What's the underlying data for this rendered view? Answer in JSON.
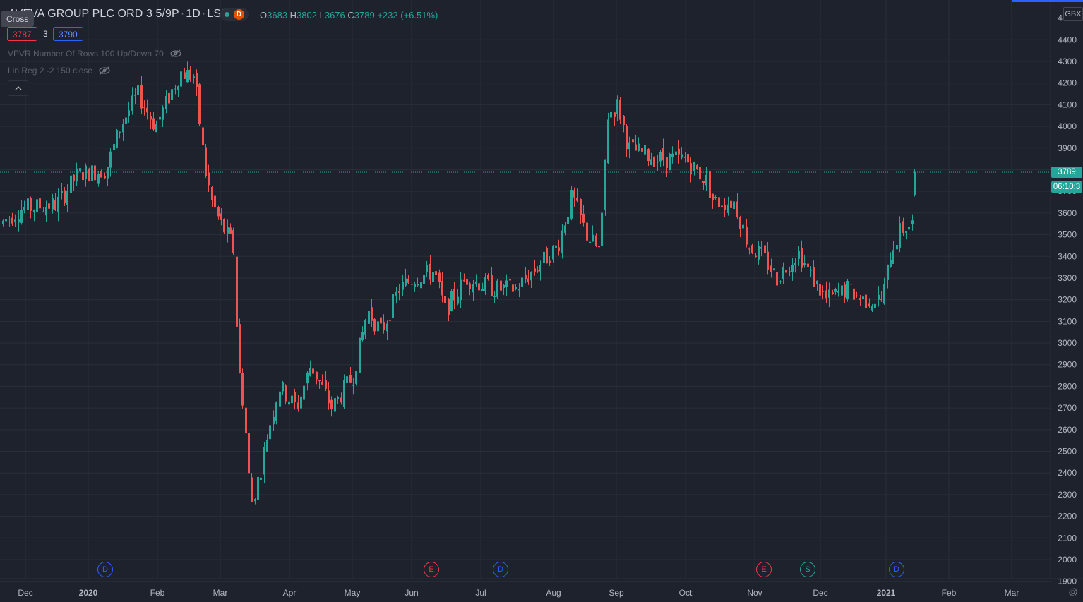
{
  "legend": {
    "symbol": "AVEVA GROUP PLC ORD 3 5/9P",
    "interval": "1D",
    "exchange": "LSE",
    "status_badge": "D",
    "open_label": "O",
    "open": "3683",
    "high_label": "H",
    "high": "3802",
    "low_label": "L",
    "low": "3676",
    "close_label": "C",
    "close": "3789",
    "change": "+232 (+6.51%)"
  },
  "crosshair_tooltip": "Cross",
  "bid": "3787",
  "spread": "3",
  "ask": "3790",
  "indicators": [
    {
      "label": "VPVR Number Of Rows 100 Up/Down 70"
    },
    {
      "label": "Lin Reg 2 -2 150 close"
    }
  ],
  "price_axis": {
    "currency": "GBX",
    "ticks": [
      "4500",
      "4400",
      "4300",
      "4200",
      "4100",
      "4000",
      "3900",
      "3800",
      "3700",
      "3600",
      "3500",
      "3400",
      "3300",
      "3200",
      "3100",
      "3000",
      "2900",
      "2800",
      "2700",
      "2600",
      "2500",
      "2400",
      "2300",
      "2200",
      "2100",
      "2000",
      "1900"
    ],
    "last_price": "3789",
    "countdown": "06:10:3"
  },
  "time_axis": {
    "ticks": [
      "Dec",
      "2020",
      "Feb",
      "Mar",
      "Apr",
      "May",
      "Jun",
      "Jul",
      "Aug",
      "Sep",
      "Oct",
      "Nov",
      "Dec",
      "2021",
      "Feb",
      "Mar"
    ]
  },
  "events": [
    "D",
    "E",
    "D",
    "E",
    "S",
    "D"
  ],
  "colors": {
    "background": "#1e222d",
    "up": "#26a69a",
    "down": "#ef5350",
    "grid": "#2a2e39",
    "accent": "#2962ff"
  },
  "chart_data": {
    "type": "candlestick",
    "y_range": [
      1900,
      4450
    ],
    "x_range": [
      "2019-11-20",
      "2021-03-17"
    ],
    "grid": true,
    "series": [
      {
        "close_by_month": [
          {
            "x": "2019-11",
            "close": 3650
          },
          {
            "x": "2019-12",
            "close": 3700
          },
          {
            "x": "2020-01",
            "close": 4050
          },
          {
            "x": "2020-02",
            "close": 4250
          },
          {
            "x": "2020-03",
            "close": 2300
          },
          {
            "x": "2020-04",
            "close": 2700
          },
          {
            "x": "2020-05",
            "close": 3100
          },
          {
            "x": "2020-06",
            "close": 3320
          },
          {
            "x": "2020-07",
            "close": 3250
          },
          {
            "x": "2020-08",
            "close": 3750
          },
          {
            "x": "2020-09",
            "close": 3900
          },
          {
            "x": "2020-10",
            "close": 3600
          },
          {
            "x": "2020-11",
            "close": 3350
          },
          {
            "x": "2020-12",
            "close": 3200
          },
          {
            "x": "2021-01",
            "close": 3789
          }
        ]
      }
    ]
  }
}
